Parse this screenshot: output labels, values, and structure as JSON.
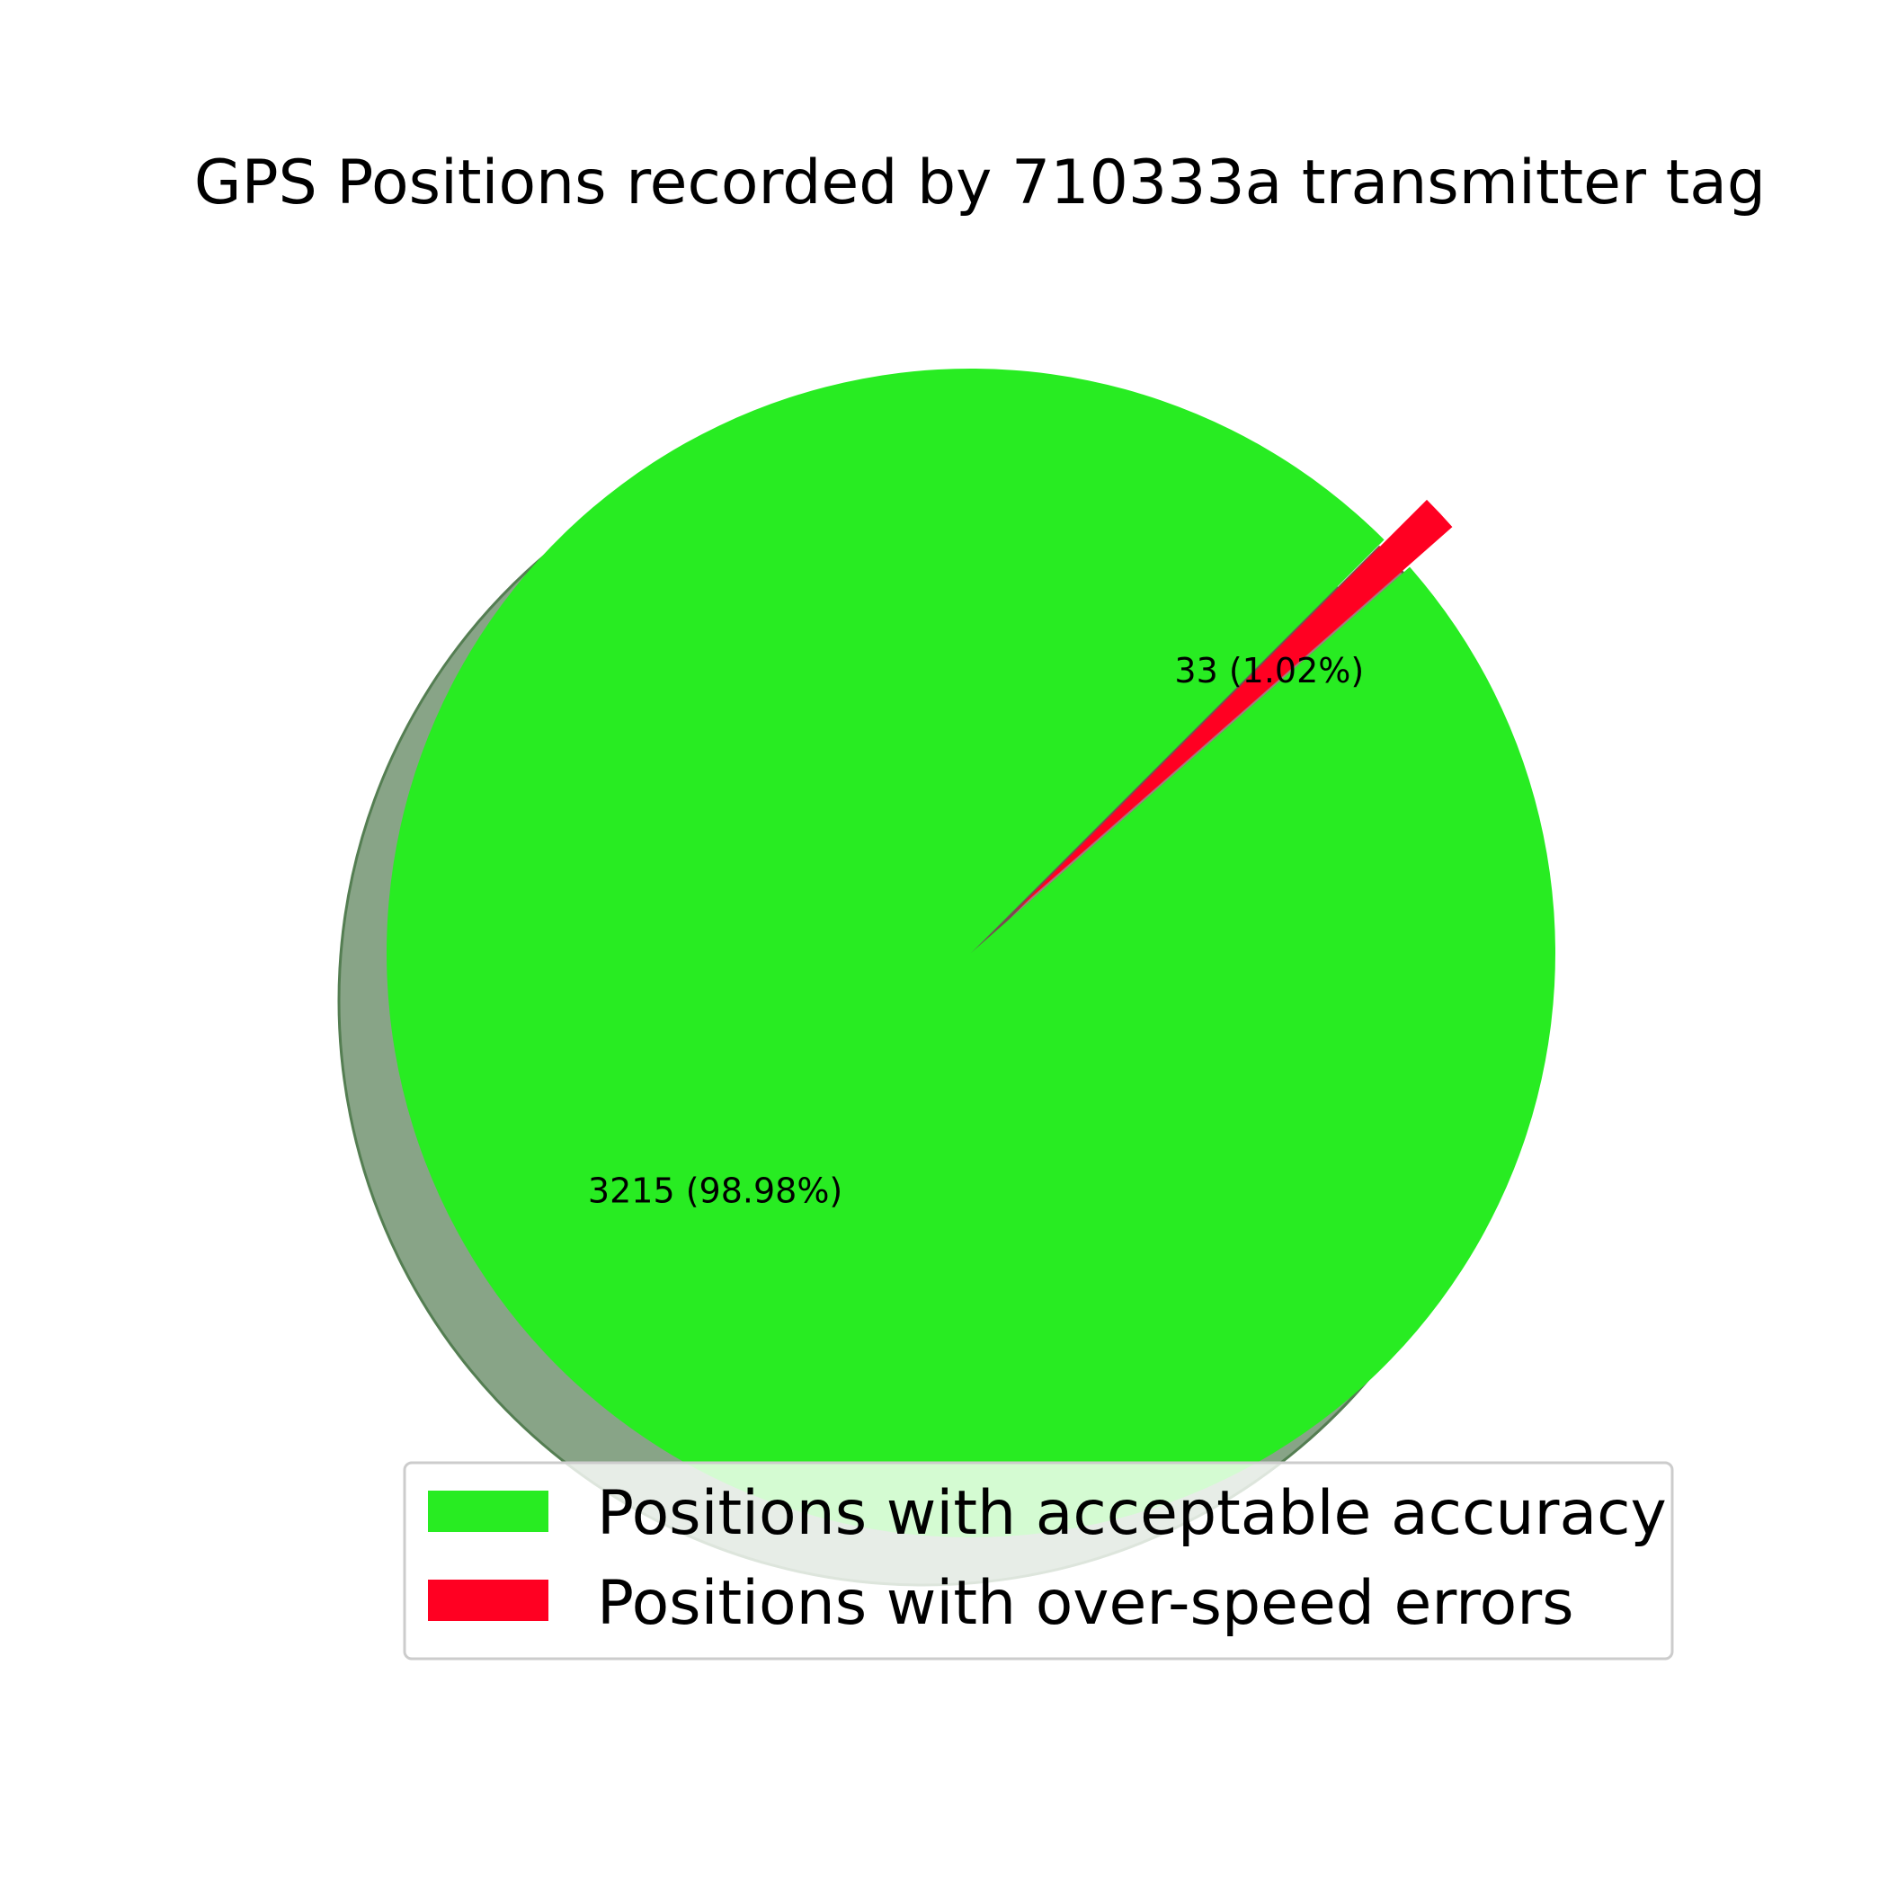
{
  "chart_data": {
    "type": "pie",
    "title": "GPS Positions recorded by 710333a transmitter tag",
    "categories": [
      "Positions with acceptable accuracy",
      "Positions with over-speed errors"
    ],
    "values": [
      3215,
      33
    ],
    "labels": [
      "3215 (98.98%)",
      "33 (1.02%)"
    ],
    "percentages": [
      98.98,
      1.02
    ],
    "colors": [
      "#28ec22",
      "#ff0022"
    ],
    "exploded": [
      false,
      true
    ],
    "shadow": true,
    "legend": {
      "placement": "lower-right",
      "entries": [
        "Positions with acceptable accuracy",
        "Positions with over-speed errors"
      ]
    }
  }
}
